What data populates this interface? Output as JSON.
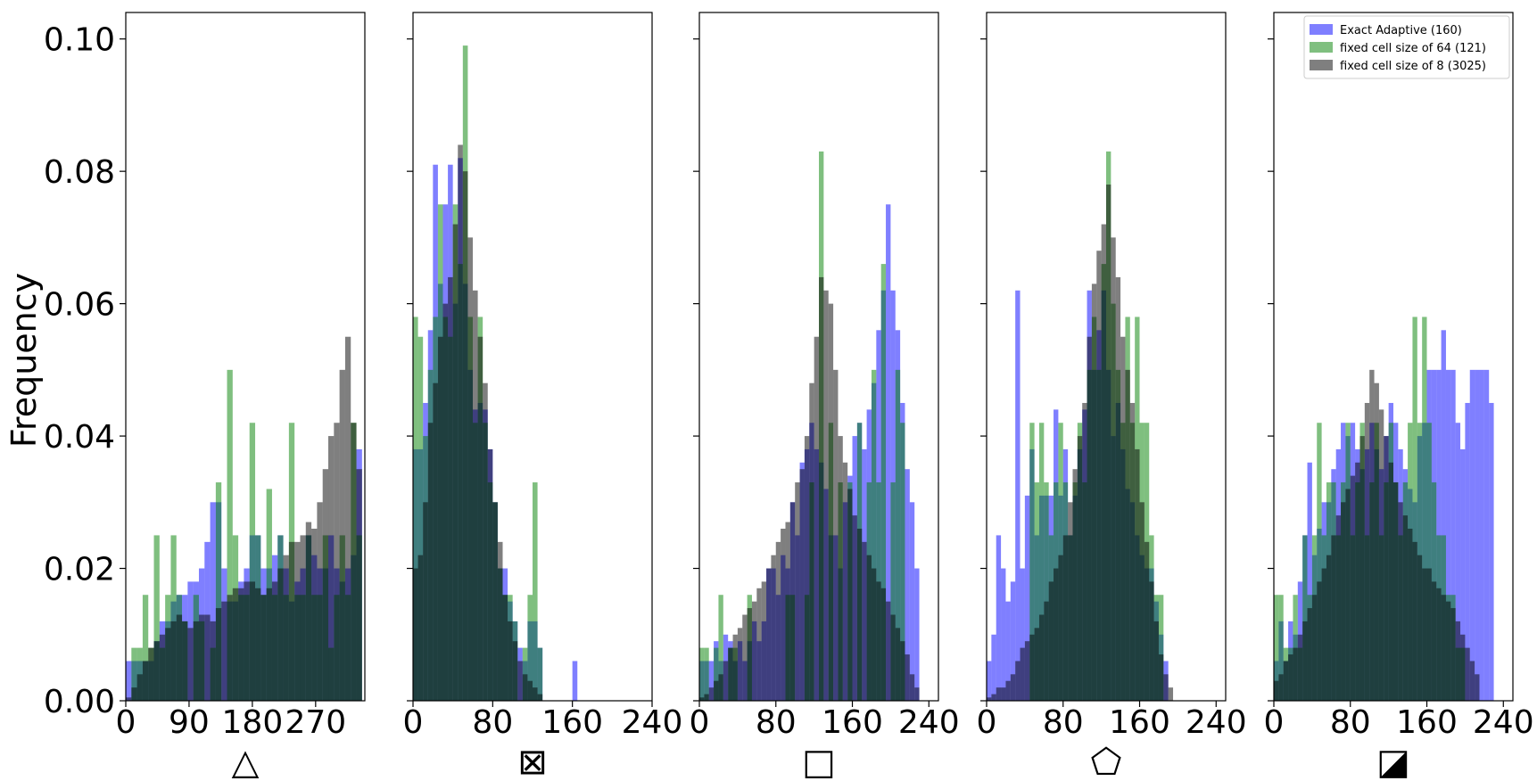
{
  "chart_data": {
    "type": "histogram",
    "ylabel": "Frequency",
    "ylim": [
      0,
      0.104
    ],
    "y_ticks": [
      0.0,
      0.02,
      0.04,
      0.06,
      0.08,
      0.1
    ],
    "y_tick_labels": [
      "0.00",
      "0.02",
      "0.04",
      "0.06",
      "0.08",
      "0.10"
    ],
    "sharey": true,
    "legend": {
      "location": "top-right of last panel"
    },
    "series_meta": [
      {
        "name": "Exact Adaptive (160)",
        "color": "#0000ff",
        "opacity": 0.5
      },
      {
        "name": "fixed cell size of 64 (121)",
        "color": "#008000",
        "opacity": 0.5
      },
      {
        "name": "fixed cell size of 8 (3025)",
        "color": "#000000",
        "opacity": 0.5
      }
    ],
    "panels": [
      {
        "xlabel": "△",
        "xlim": [
          0,
          340
        ],
        "x_ticks": [
          0,
          90,
          180,
          270
        ],
        "x_tick_labels": [
          "0",
          "90",
          "180",
          "270"
        ],
        "bin_start": 0,
        "bin_width": 8,
        "series": [
          {
            "name": "Exact Adaptive (160)",
            "values": [
              0.006,
              0.006,
              0.006,
              0.006,
              0.006,
              0.009,
              0.012,
              0.012,
              0.015,
              0.016,
              0.016,
              0.018,
              0.018,
              0.02,
              0.024,
              0.03,
              0.03,
              0.02,
              0.015,
              0.015,
              0.018,
              0.02,
              0.025,
              0.025,
              0.02,
              0.02,
              0.022,
              0.025,
              0.02,
              0.015,
              0.018,
              0.02,
              0.025,
              0.022,
              0.02,
              0.02,
              0.025,
              0.02,
              0.018,
              0.02,
              0.022,
              0.038
            ]
          },
          {
            "name": "fixed cell size of 64 (121)",
            "values": [
              0.0,
              0.008,
              0.008,
              0.016,
              0.008,
              0.025,
              0.008,
              0.016,
              0.025,
              0.016,
              0.012,
              0.0,
              0.016,
              0.012,
              0.0,
              0.008,
              0.033,
              0.0,
              0.05,
              0.025,
              0.016,
              0.016,
              0.042,
              0.025,
              0.016,
              0.032,
              0.016,
              0.025,
              0.016,
              0.042,
              0.016,
              0.016,
              0.025,
              0.016,
              0.016,
              0.025,
              0.008,
              0.016,
              0.025,
              0.016,
              0.042,
              0.025
            ]
          },
          {
            "name": "fixed cell size of 8 (3025)",
            "values": [
              0.0005,
              0.002,
              0.004,
              0.006,
              0.008,
              0.009,
              0.01,
              0.011,
              0.012,
              0.013,
              0.012,
              0.011,
              0.012,
              0.013,
              0.013,
              0.012,
              0.014,
              0.015,
              0.016,
              0.017,
              0.017,
              0.018,
              0.018,
              0.017,
              0.016,
              0.017,
              0.018,
              0.02,
              0.022,
              0.024,
              0.024,
              0.025,
              0.027,
              0.026,
              0.03,
              0.035,
              0.04,
              0.042,
              0.05,
              0.055,
              0.042,
              0.035
            ]
          }
        ]
      },
      {
        "xlabel": "⊠",
        "xlim": [
          0,
          240
        ],
        "x_ticks": [
          0,
          80,
          160,
          240
        ],
        "x_tick_labels": [
          "0",
          "80",
          "160",
          "240"
        ],
        "bin_start": 0,
        "bin_width": 5,
        "series": [
          {
            "name": "Exact Adaptive (160)",
            "values": [
              0.038,
              0.038,
              0.045,
              0.056,
              0.081,
              0.063,
              0.075,
              0.081,
              0.06,
              0.082,
              0.063,
              0.05,
              0.044,
              0.045,
              0.044,
              0.038,
              0.03,
              0.02,
              0.02,
              0.015,
              0.012,
              0.008,
              0.006,
              0.012,
              0.012,
              0.008,
              0.0,
              0.0,
              0.0,
              0.0,
              0.0,
              0.0,
              0.006,
              0.0,
              0.0,
              0.0,
              0.0,
              0.0,
              0.0,
              0.0,
              0.0,
              0.0,
              0.0,
              0.0,
              0.0,
              0.0,
              0.0,
              0.0
            ]
          },
          {
            "name": "fixed cell size of 64 (121)",
            "values": [
              0.058,
              0.055,
              0.04,
              0.05,
              0.058,
              0.075,
              0.058,
              0.055,
              0.075,
              0.066,
              0.099,
              0.058,
              0.042,
              0.058,
              0.042,
              0.033,
              0.03,
              0.02,
              0.016,
              0.016,
              0.012,
              0.0,
              0.008,
              0.016,
              0.033,
              0.008,
              0.0,
              0.0,
              0.0,
              0.0,
              0.0,
              0.0,
              0.0,
              0.0,
              0.0,
              0.0,
              0.0,
              0.0,
              0.0,
              0.0,
              0.0,
              0.0,
              0.0,
              0.0,
              0.0,
              0.0,
              0.0,
              0.0
            ]
          },
          {
            "name": "fixed cell size of 8 (3025)",
            "values": [
              0.02,
              0.022,
              0.03,
              0.042,
              0.048,
              0.055,
              0.06,
              0.064,
              0.072,
              0.084,
              0.08,
              0.07,
              0.062,
              0.055,
              0.048,
              0.038,
              0.03,
              0.024,
              0.016,
              0.012,
              0.009,
              0.006,
              0.004,
              0.003,
              0.002,
              0.001,
              0.0,
              0.0,
              0.0,
              0.0,
              0.0,
              0.0,
              0.0,
              0.0,
              0.0,
              0.0,
              0.0,
              0.0,
              0.0,
              0.0,
              0.0,
              0.0,
              0.0,
              0.0,
              0.0,
              0.0,
              0.0,
              0.0
            ]
          }
        ]
      },
      {
        "xlabel": "□",
        "xlim": [
          0,
          250
        ],
        "x_ticks": [
          0,
          80,
          160,
          240
        ],
        "x_tick_labels": [
          "0",
          "80",
          "160",
          "240"
        ],
        "bin_start": 0,
        "bin_width": 5,
        "series": [
          {
            "name": "Exact Adaptive (160)",
            "values": [
              0.006,
              0.006,
              0.006,
              0.009,
              0.006,
              0.01,
              0.009,
              0.006,
              0.009,
              0.006,
              0.009,
              0.012,
              0.009,
              0.012,
              0.02,
              0.02,
              0.016,
              0.022,
              0.02,
              0.03,
              0.025,
              0.036,
              0.038,
              0.042,
              0.038,
              0.036,
              0.032,
              0.025,
              0.025,
              0.02,
              0.03,
              0.034,
              0.04,
              0.042,
              0.038,
              0.044,
              0.048,
              0.056,
              0.062,
              0.075,
              0.062,
              0.056,
              0.045,
              0.035,
              0.03,
              0.02,
              0.0,
              0.0,
              0.0,
              0.0
            ]
          },
          {
            "name": "fixed cell size of 64 (121)",
            "values": [
              0.008,
              0.008,
              0.0,
              0.008,
              0.016,
              0.0,
              0.008,
              0.008,
              0.0,
              0.0,
              0.016,
              0.0,
              0.0,
              0.0,
              0.0,
              0.0,
              0.0,
              0.0,
              0.016,
              0.016,
              0.0,
              0.0,
              0.016,
              0.033,
              0.0,
              0.083,
              0.0,
              0.042,
              0.0,
              0.033,
              0.0,
              0.033,
              0.0,
              0.042,
              0.0,
              0.033,
              0.05,
              0.033,
              0.066,
              0.0,
              0.033,
              0.05,
              0.042,
              0.0,
              0.0,
              0.0,
              0.0,
              0.0,
              0.0,
              0.0
            ]
          },
          {
            "name": "fixed cell size of 8 (3025)",
            "values": [
              0.0005,
              0.001,
              0.002,
              0.003,
              0.004,
              0.006,
              0.008,
              0.01,
              0.011,
              0.013,
              0.014,
              0.015,
              0.017,
              0.018,
              0.02,
              0.022,
              0.024,
              0.026,
              0.027,
              0.03,
              0.033,
              0.035,
              0.04,
              0.048,
              0.055,
              0.064,
              0.062,
              0.06,
              0.05,
              0.04,
              0.036,
              0.032,
              0.028,
              0.026,
              0.024,
              0.022,
              0.02,
              0.018,
              0.017,
              0.015,
              0.013,
              0.011,
              0.009,
              0.007,
              0.004,
              0.002,
              0.0,
              0.0,
              0.0,
              0.0
            ]
          }
        ]
      },
      {
        "xlabel": "⬠",
        "xlim": [
          0,
          250
        ],
        "x_ticks": [
          0,
          80,
          160,
          240
        ],
        "x_tick_labels": [
          "0",
          "80",
          "160",
          "240"
        ],
        "bin_start": 0,
        "bin_width": 5,
        "series": [
          {
            "name": "Exact Adaptive (160)",
            "values": [
              0.006,
              0.01,
              0.025,
              0.02,
              0.015,
              0.018,
              0.062,
              0.02,
              0.031,
              0.038,
              0.025,
              0.031,
              0.031,
              0.031,
              0.044,
              0.031,
              0.038,
              0.025,
              0.031,
              0.038,
              0.044,
              0.062,
              0.05,
              0.056,
              0.062,
              0.05,
              0.04,
              0.045,
              0.038,
              0.032,
              0.03,
              0.025,
              0.022,
              0.02,
              0.02,
              0.015,
              0.01,
              0.006,
              0.0,
              0.0,
              0.0,
              0.0,
              0.0,
              0.0,
              0.0,
              0.0,
              0.0,
              0.0,
              0.0,
              0.0
            ]
          },
          {
            "name": "fixed cell size of 64 (121)",
            "values": [
              0.0,
              0.0,
              0.0,
              0.0,
              0.0,
              0.0,
              0.0,
              0.0,
              0.0,
              0.042,
              0.033,
              0.042,
              0.033,
              0.025,
              0.033,
              0.042,
              0.033,
              0.025,
              0.033,
              0.042,
              0.033,
              0.05,
              0.058,
              0.05,
              0.066,
              0.083,
              0.06,
              0.05,
              0.042,
              0.058,
              0.042,
              0.058,
              0.042,
              0.042,
              0.025,
              0.016,
              0.016,
              0.0,
              0.0,
              0.0,
              0.0,
              0.0,
              0.0,
              0.0,
              0.0,
              0.0,
              0.0,
              0.0,
              0.0,
              0.0
            ]
          },
          {
            "name": "fixed cell size of 8 (3025)",
            "values": [
              0.0005,
              0.001,
              0.002,
              0.002,
              0.003,
              0.004,
              0.006,
              0.008,
              0.009,
              0.01,
              0.011,
              0.013,
              0.015,
              0.018,
              0.02,
              0.022,
              0.025,
              0.03,
              0.035,
              0.04,
              0.045,
              0.055,
              0.063,
              0.068,
              0.072,
              0.078,
              0.07,
              0.064,
              0.055,
              0.05,
              0.045,
              0.038,
              0.03,
              0.024,
              0.018,
              0.012,
              0.007,
              0.004,
              0.002,
              0.0,
              0.0,
              0.0,
              0.0,
              0.0,
              0.0,
              0.0,
              0.0,
              0.0,
              0.0,
              0.0
            ]
          }
        ]
      },
      {
        "xlabel": "◪",
        "xlim": [
          0,
          250
        ],
        "x_ticks": [
          0,
          80,
          160,
          240
        ],
        "x_tick_labels": [
          "0",
          "80",
          "160",
          "240"
        ],
        "bin_start": 0,
        "bin_width": 5,
        "series": [
          {
            "name": "Exact Adaptive (160)",
            "values": [
              0.006,
              0.012,
              0.006,
              0.012,
              0.01,
              0.018,
              0.025,
              0.036,
              0.022,
              0.026,
              0.03,
              0.03,
              0.035,
              0.038,
              0.042,
              0.04,
              0.042,
              0.038,
              0.035,
              0.038,
              0.042,
              0.038,
              0.035,
              0.04,
              0.045,
              0.042,
              0.038,
              0.035,
              0.032,
              0.03,
              0.04,
              0.042,
              0.05,
              0.05,
              0.05,
              0.056,
              0.05,
              0.05,
              0.042,
              0.038,
              0.045,
              0.05,
              0.05,
              0.05,
              0.05,
              0.045,
              0.0,
              0.0,
              0.0,
              0.0
            ]
          },
          {
            "name": "fixed cell size of 64 (121)",
            "values": [
              0.016,
              0.016,
              0.008,
              0.008,
              0.016,
              0.008,
              0.025,
              0.016,
              0.025,
              0.042,
              0.025,
              0.033,
              0.033,
              0.025,
              0.033,
              0.042,
              0.025,
              0.033,
              0.042,
              0.025,
              0.033,
              0.042,
              0.025,
              0.033,
              0.042,
              0.033,
              0.025,
              0.033,
              0.042,
              0.058,
              0.042,
              0.058,
              0.042,
              0.033,
              0.025,
              0.025,
              0.016,
              0.016,
              0.008,
              0.008,
              0.0,
              0.0,
              0.0,
              0.0,
              0.0,
              0.0,
              0.0,
              0.0,
              0.0,
              0.0
            ]
          },
          {
            "name": "fixed cell size of 8 (3025)",
            "values": [
              0.003,
              0.004,
              0.006,
              0.007,
              0.008,
              0.01,
              0.012,
              0.014,
              0.016,
              0.018,
              0.02,
              0.022,
              0.025,
              0.028,
              0.03,
              0.032,
              0.034,
              0.036,
              0.04,
              0.045,
              0.05,
              0.048,
              0.044,
              0.04,
              0.036,
              0.033,
              0.03,
              0.028,
              0.026,
              0.024,
              0.022,
              0.02,
              0.02,
              0.018,
              0.017,
              0.016,
              0.015,
              0.014,
              0.012,
              0.01,
              0.008,
              0.006,
              0.004,
              0.0,
              0.0,
              0.0,
              0.0,
              0.0,
              0.0,
              0.0
            ]
          }
        ]
      }
    ]
  }
}
